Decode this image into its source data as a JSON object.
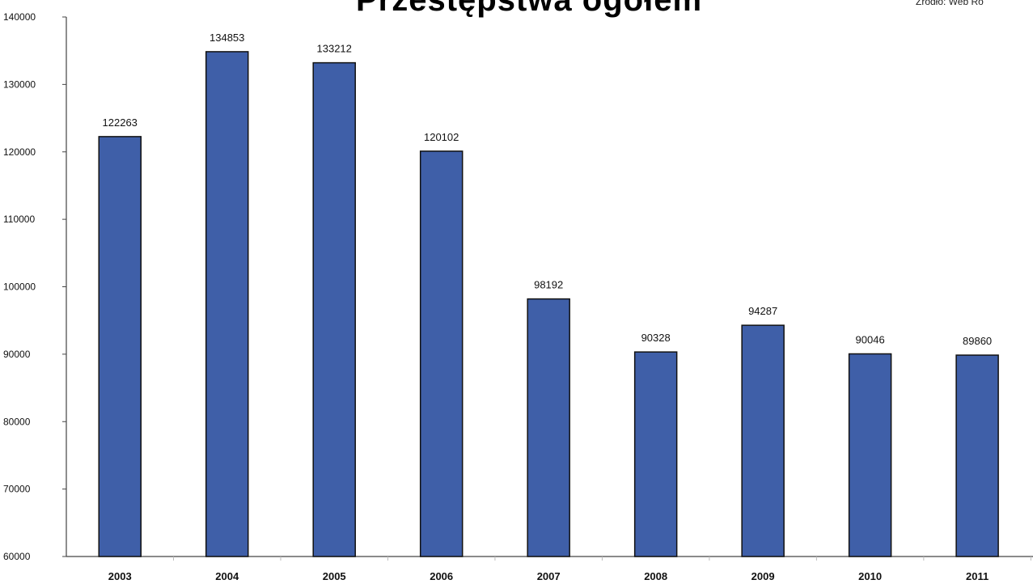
{
  "chart_data": {
    "type": "bar",
    "title": "Przestępstwa ogółem",
    "source": "Źródło: Web Ro",
    "categories": [
      "2003",
      "2004",
      "2005",
      "2006",
      "2007",
      "2008",
      "2009",
      "2010",
      "2011"
    ],
    "values": [
      122263,
      134853,
      133212,
      120102,
      98192,
      90328,
      94287,
      90046,
      89860
    ],
    "value_labels": [
      "122263",
      "134853",
      "133212",
      "120102",
      "98192",
      "90328",
      "94287",
      "90046",
      "89860"
    ],
    "y_ticks": [
      "60000",
      "70000",
      "80000",
      "90000",
      "100000",
      "110000",
      "120000",
      "130000",
      "140000"
    ],
    "ylim": [
      60000,
      140000
    ],
    "xlabel": "",
    "ylabel": "",
    "grid": false,
    "legend": "none",
    "bar_color": "#3f5fa8",
    "bar_edge_color": "#111111"
  }
}
